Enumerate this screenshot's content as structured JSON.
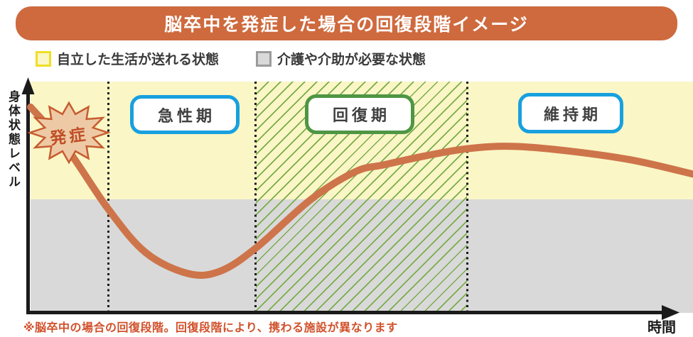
{
  "title": "脳卒中を発症した場合の回復段階イメージ",
  "legend": {
    "independent_label": "自立した生活が送れる状態",
    "care_label": "介護や介助が必要な状態"
  },
  "footnote": "※脳卒中の場合の回復段階。回復段階により、携わる施設が異なります",
  "chart_data": {
    "type": "line",
    "title": "脳卒中を発症した場合の回復段階イメージ",
    "xlabel": "時間",
    "ylabel": "身体状態レベル",
    "onset_label": "発症",
    "x_axis": {
      "min": 0,
      "max": 100,
      "normalized": true,
      "ticks": "none"
    },
    "y_axis": {
      "min": 0,
      "max": 100,
      "normalized": true,
      "ticks": "none"
    },
    "grid": false,
    "legend_position": "top",
    "care_threshold_y": 49,
    "bands": [
      {
        "label": "自立した生活が送れる状態",
        "y_from": 49,
        "y_to": 100
      },
      {
        "label": "介護や介助が必要な状態",
        "y_from": 0,
        "y_to": 49
      }
    ],
    "phase_boundaries_x": [
      11.8,
      34,
      65.9
    ],
    "phases": [
      {
        "label": "急性期",
        "x_from": 11.8,
        "x_to": 34,
        "border_color": "#18A0DF",
        "hatched": false
      },
      {
        "label": "回復期",
        "x_from": 34,
        "x_to": 65.9,
        "border_color": "#4F9644",
        "hatched": true
      },
      {
        "label": "維持期",
        "x_from": 65.9,
        "x_to": 100,
        "border_color": "#18A0DF",
        "hatched": false
      }
    ],
    "series": [
      {
        "name": "身体状態レベル",
        "x": [
          0,
          5.5,
          11.7,
          17.4,
          23.8,
          28.6,
          34,
          42.3,
          49,
          53.3,
          59.8,
          66,
          72.6,
          81.2,
          90.9,
          100
        ],
        "y": [
          89,
          71,
          45,
          26,
          17,
          18,
          28,
          49,
          61,
          64,
          68,
          71,
          72,
          70,
          66,
          60
        ]
      }
    ]
  },
  "colors": {
    "banner": "#CE6A3E",
    "banner_text": "#FFFFFF",
    "curve": "#CE744A",
    "independent_fill": "#FAF6C6",
    "independent_swatch_border": "#EFDF25",
    "care_fill": "#D9D9D9",
    "care_swatch_border": "#9B9B9B",
    "hatch_line": "#79AC4A",
    "phase_blue_border": "#18A0DF",
    "phase_green_border": "#4F9644",
    "phase_text": "#3F3F3F",
    "onset_fill": "#EDCAA5",
    "onset_border": "#C75C30",
    "onset_text": "#C04E27",
    "axis": "#1B1B1B",
    "footnote_text": "#D1512B",
    "legend_text": "#3A3A3A"
  }
}
